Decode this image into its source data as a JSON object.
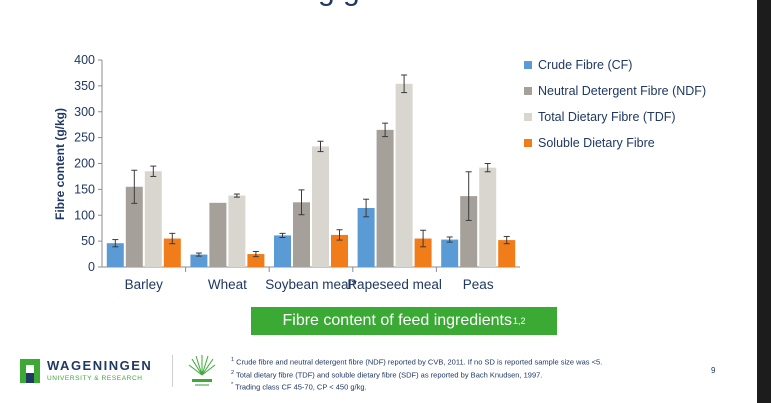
{
  "slide": {
    "title_fragment": "g g",
    "caption_text": "Fibre content of feed ingredients",
    "caption_sup": "1,2",
    "page_number": "9"
  },
  "footer": {
    "logo_text": "WAGENINGEN",
    "logo_sub": "UNIVERSITY & RESEARCH",
    "footnotes": [
      {
        "mark": "1",
        "text": "Crude fibre and neutral detergent fibre (NDF) reported by CVB, 2011. If no SD is reported sample size was <5."
      },
      {
        "mark": "2",
        "text": "Total dietary fibre (TDF) and soluble dietary fibre (SDF) as reported by Bach Knudsen, 1997."
      },
      {
        "mark": "*",
        "text": "Trading class CF 45-70, CP < 450 g/kg."
      }
    ]
  },
  "chart_data": {
    "type": "bar",
    "title": "",
    "xlabel": "",
    "ylabel": "Fibre content (g/kg)",
    "ylim": [
      0,
      400
    ],
    "yticks": [
      0,
      50,
      100,
      150,
      200,
      250,
      300,
      350,
      400
    ],
    "grid": false,
    "legend_position": "right",
    "categories": [
      "Barley",
      "Wheat",
      "Soybean meal*",
      "Rapeseed meal",
      "Peas"
    ],
    "series": [
      {
        "name": "Crude Fibre (CF)",
        "color": "#5b9bd5",
        "values": [
          46,
          24,
          61,
          114,
          53
        ],
        "errors": [
          7,
          3,
          4,
          17,
          5
        ]
      },
      {
        "name": "Neutral Detergent Fibre (NDF)",
        "color": "#a5a09a",
        "values": [
          155,
          124,
          125,
          265,
          137
        ],
        "errors": [
          32,
          null,
          24,
          13,
          47
        ]
      },
      {
        "name": "Total Dietary Fibre (TDF)",
        "color": "#d9d6d0",
        "values": [
          185,
          138,
          233,
          354,
          192
        ],
        "errors": [
          10,
          3,
          10,
          17,
          8
        ]
      },
      {
        "name": "Soluble Dietary Fibre",
        "color": "#f07d1a",
        "values": [
          55,
          25,
          62,
          55,
          52
        ],
        "errors": [
          10,
          5,
          10,
          16,
          7
        ]
      }
    ]
  }
}
